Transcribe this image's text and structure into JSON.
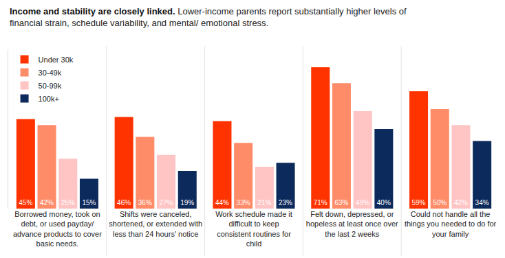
{
  "chart_data": {
    "type": "bar",
    "title": "Income and stability are closely linked.",
    "subtitle": "Lower-income parents report substantially higher levels of financial strain, schedule variability, and mental/ emotional stress.",
    "categories": [
      "Borrowed money, took on debt, or used payday/ advance products to cover basic needs.",
      "Shifts were canceled, shortened, or extended with less than 24 hours' notice",
      "Work schedule made it difficult to keep consistent routines for child",
      "Felt down, depressed, or hopeless at least once over the last 2 weeks",
      "Could not handle all the things you needed to do for your family"
    ],
    "series": [
      {
        "name": "Under 30k",
        "color": "#ff3300",
        "values": [
          45,
          46,
          44,
          71,
          59
        ],
        "value_labels": [
          "45%",
          "46%",
          "44%",
          "71%",
          "59%"
        ]
      },
      {
        "name": "30-49k",
        "color": "#ff8c69",
        "values": [
          42,
          36,
          33,
          63,
          50
        ],
        "value_labels": [
          "42%",
          "36%",
          "33%",
          "63%",
          "50%"
        ]
      },
      {
        "name": "50-99k",
        "color": "#ffc4c4",
        "values": [
          25,
          27,
          21,
          49,
          42
        ],
        "value_labels": [
          "25%",
          "27%",
          "21%",
          "49%",
          "42%"
        ]
      },
      {
        "name": "100k+",
        "color": "#0d2a5c",
        "values": [
          15,
          19,
          23,
          40,
          34
        ],
        "value_labels": [
          "15%",
          "19%",
          "23%",
          "40%",
          "34%"
        ]
      }
    ],
    "ylim": [
      0,
      80
    ],
    "grid": false,
    "legend": "top-left",
    "data_labels": true,
    "tick_labels": "x"
  }
}
